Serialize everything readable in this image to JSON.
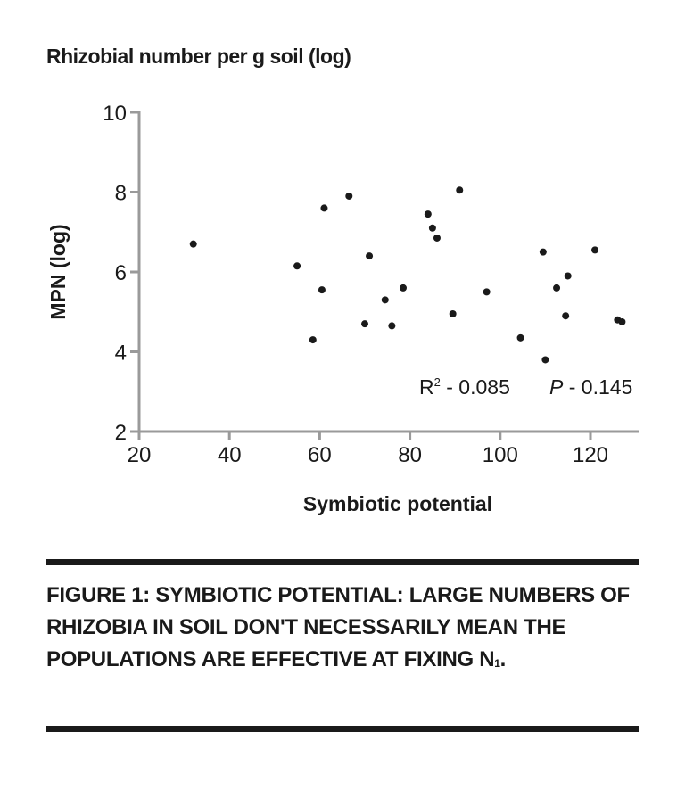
{
  "figure_title": "Rhizobial number per g soil (log)",
  "caption": {
    "text": "FIGURE 1: SYMBIOTIC POTENTIAL: LARGE NUMBERS OF RHIZOBIA IN SOIL DON'T NECESSARILY MEAN THE POPULATIONS ARE EFFECTIVE AT FIXING N",
    "superscript": "1",
    "suffix": "."
  },
  "chart_data": {
    "type": "scatter",
    "xlabel": "Symbiotic potential",
    "ylabel": "MPN (log)",
    "xlim": [
      20,
      130
    ],
    "ylim": [
      2,
      10
    ],
    "xticks": [
      20,
      40,
      60,
      80,
      100,
      120
    ],
    "yticks": [
      2,
      4,
      6,
      8,
      10
    ],
    "grid": false,
    "annotation": {
      "r2_label": "R",
      "r2_sup": "2",
      "r2_value": " - 0.085",
      "p_label": "P",
      "p_value": " - 0.145"
    },
    "points": [
      {
        "x": 32,
        "y": 6.7
      },
      {
        "x": 55,
        "y": 6.15
      },
      {
        "x": 58.5,
        "y": 4.3
      },
      {
        "x": 60.5,
        "y": 5.55
      },
      {
        "x": 61,
        "y": 7.6
      },
      {
        "x": 66.5,
        "y": 7.9
      },
      {
        "x": 70,
        "y": 4.7
      },
      {
        "x": 71,
        "y": 6.4
      },
      {
        "x": 74.5,
        "y": 5.3
      },
      {
        "x": 76,
        "y": 4.65
      },
      {
        "x": 78.5,
        "y": 5.6
      },
      {
        "x": 84,
        "y": 7.45
      },
      {
        "x": 85,
        "y": 7.1
      },
      {
        "x": 86,
        "y": 6.85
      },
      {
        "x": 89.5,
        "y": 4.95
      },
      {
        "x": 91,
        "y": 8.05
      },
      {
        "x": 97,
        "y": 5.5
      },
      {
        "x": 104.5,
        "y": 4.35
      },
      {
        "x": 109.5,
        "y": 6.5
      },
      {
        "x": 110,
        "y": 3.8
      },
      {
        "x": 112.5,
        "y": 5.6
      },
      {
        "x": 114.5,
        "y": 4.9
      },
      {
        "x": 115,
        "y": 5.9
      },
      {
        "x": 121,
        "y": 6.55
      },
      {
        "x": 126,
        "y": 4.8
      },
      {
        "x": 127,
        "y": 4.75
      }
    ]
  }
}
